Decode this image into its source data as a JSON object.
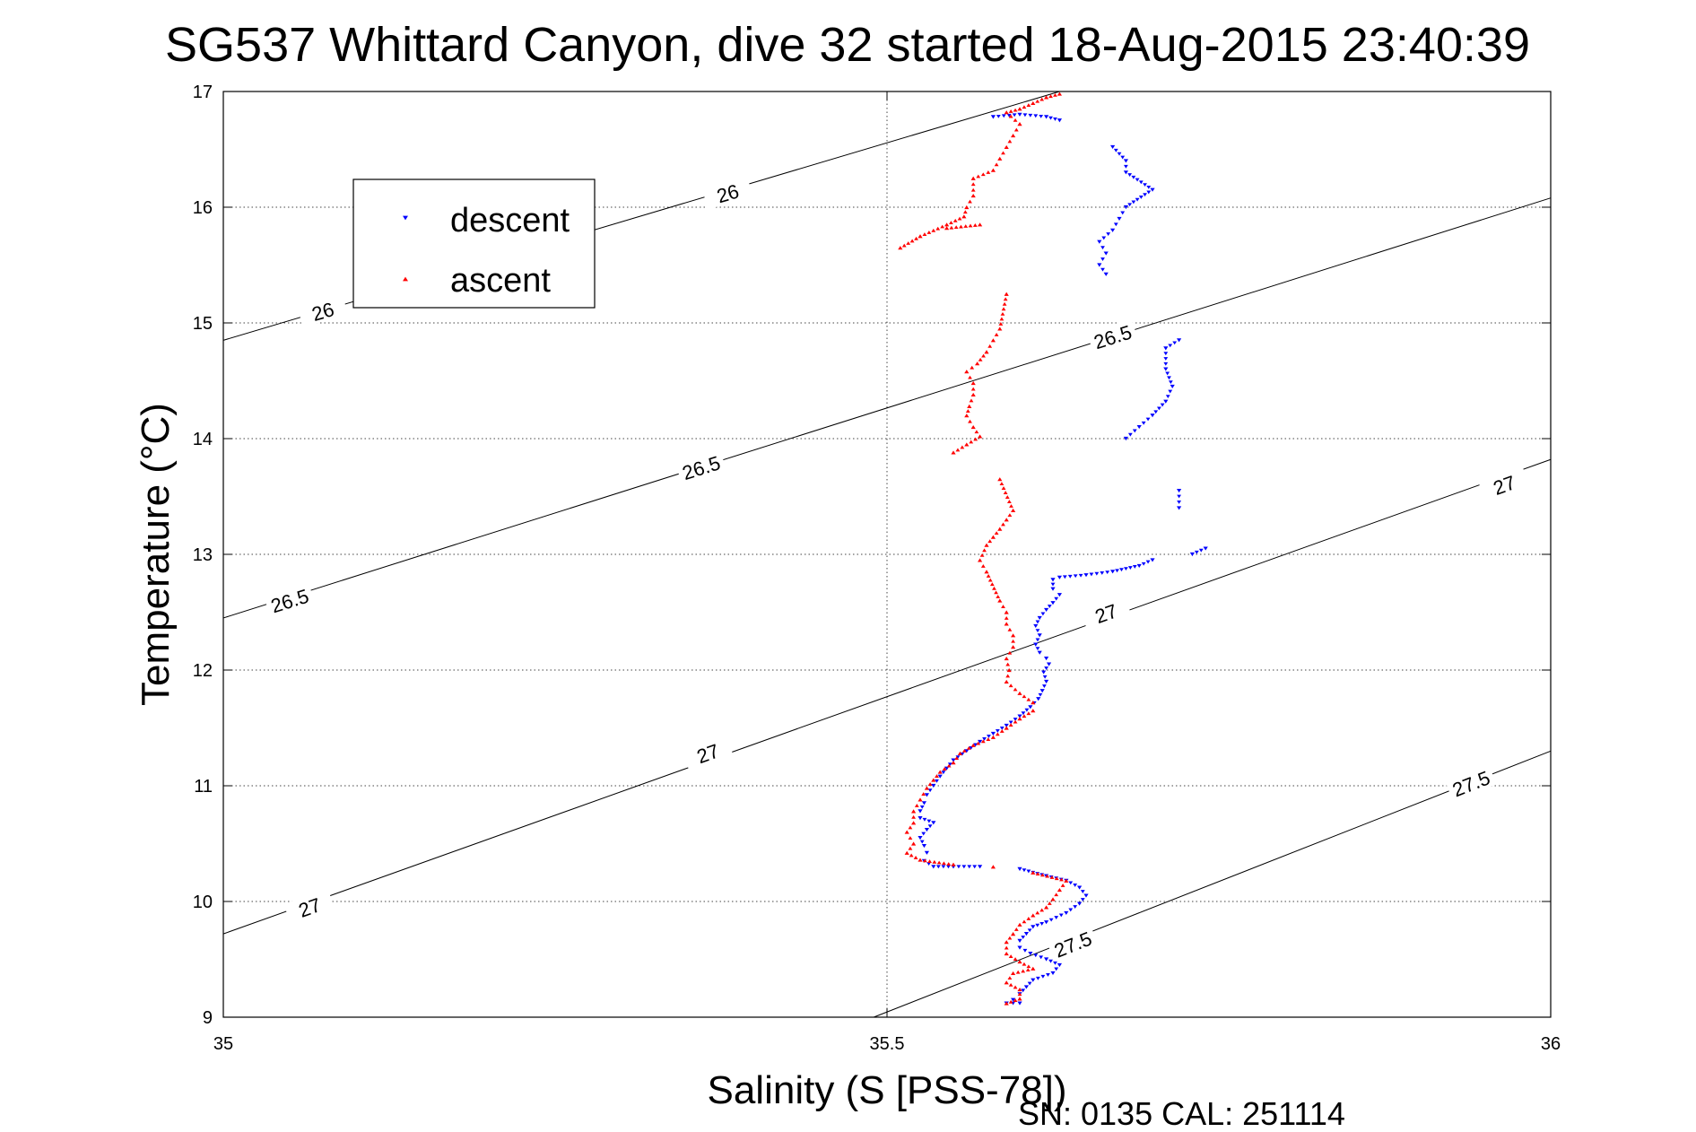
{
  "chart_data": {
    "type": "scatter",
    "title": "SG537 Whittard Canyon, dive 32 started 18-Aug-2015 23:40:39",
    "xlabel": "Salinity (S [PSS-78])",
    "ylabel": "Temperature (°C)",
    "xlim": [
      35,
      36
    ],
    "ylim": [
      9,
      17
    ],
    "xticks": [
      35,
      35.5,
      36
    ],
    "xtick_labels": [
      "35",
      "35.5",
      "36"
    ],
    "yticks": [
      9,
      10,
      11,
      12,
      13,
      14,
      15,
      16,
      17
    ],
    "ytick_labels": [
      "9",
      "10",
      "11",
      "12",
      "13",
      "14",
      "15",
      "16",
      "17"
    ],
    "grid": true,
    "legend_position": "top-left",
    "footer": "SN: 0135  CAL: 251114",
    "density_contours": [
      {
        "label": "26",
        "points": [
          [
            35,
            14.85
          ],
          [
            35.63,
            17
          ]
        ]
      },
      {
        "label": "26.5",
        "points": [
          [
            35,
            12.45
          ],
          [
            36,
            16.08
          ]
        ]
      },
      {
        "label": "27",
        "points": [
          [
            35,
            9.72
          ],
          [
            36,
            13.82
          ]
        ]
      },
      {
        "label": "27.5",
        "points": [
          [
            35.49,
            9
          ],
          [
            36,
            11.3
          ]
        ]
      }
    ],
    "contour_labels": [
      {
        "text": "26",
        "x": 35.075,
        "y": 15.1
      },
      {
        "text": "26",
        "x": 35.38,
        "y": 16.12
      },
      {
        "text": "26.5",
        "x": 35.05,
        "y": 12.6
      },
      {
        "text": "26.5",
        "x": 35.36,
        "y": 13.75
      },
      {
        "text": "26.5",
        "x": 35.67,
        "y": 14.88
      },
      {
        "text": "27",
        "x": 35.065,
        "y": 9.95
      },
      {
        "text": "27",
        "x": 35.365,
        "y": 11.28
      },
      {
        "text": "27",
        "x": 35.665,
        "y": 12.49
      },
      {
        "text": "27",
        "x": 35.965,
        "y": 13.6
      },
      {
        "text": "27.5",
        "x": 35.64,
        "y": 9.63
      },
      {
        "text": "27.5",
        "x": 35.94,
        "y": 11.02
      }
    ],
    "series": [
      {
        "name": "descent",
        "color": "#0000ff",
        "marker": "triangle-down",
        "points": [
          [
            35.58,
            16.78
          ],
          [
            35.6,
            16.8
          ],
          [
            35.62,
            16.78
          ],
          [
            35.63,
            16.75
          ],
          [
            35.67,
            16.52
          ],
          [
            35.68,
            16.4
          ],
          [
            35.68,
            16.3
          ],
          [
            35.7,
            16.15
          ],
          [
            35.68,
            16.0
          ],
          [
            35.675,
            15.9
          ],
          [
            35.67,
            15.8
          ],
          [
            35.66,
            15.7
          ],
          [
            35.665,
            15.6
          ],
          [
            35.66,
            15.5
          ],
          [
            35.665,
            15.42
          ],
          [
            35.72,
            14.85
          ],
          [
            35.71,
            14.78
          ],
          [
            35.71,
            14.6
          ],
          [
            35.715,
            14.45
          ],
          [
            35.71,
            14.32
          ],
          [
            35.7,
            14.2
          ],
          [
            35.69,
            14.1
          ],
          [
            35.68,
            14.0
          ],
          [
            35.72,
            13.55
          ],
          [
            35.72,
            13.4
          ],
          [
            35.74,
            13.05
          ],
          [
            35.73,
            13.0
          ],
          [
            35.7,
            12.95
          ],
          [
            35.69,
            12.9
          ],
          [
            35.67,
            12.85
          ],
          [
            35.65,
            12.82
          ],
          [
            35.63,
            12.8
          ],
          [
            35.625,
            12.78
          ],
          [
            35.625,
            12.7
          ],
          [
            35.63,
            12.65
          ],
          [
            35.625,
            12.58
          ],
          [
            35.62,
            12.52
          ],
          [
            35.615,
            12.45
          ],
          [
            35.612,
            12.38
          ],
          [
            35.615,
            12.3
          ],
          [
            35.612,
            12.22
          ],
          [
            35.615,
            12.15
          ],
          [
            35.62,
            12.1
          ],
          [
            35.622,
            12.05
          ],
          [
            35.618,
            11.98
          ],
          [
            35.62,
            11.9
          ],
          [
            35.617,
            11.82
          ],
          [
            35.614,
            11.75
          ],
          [
            35.608,
            11.68
          ],
          [
            35.6,
            11.6
          ],
          [
            35.59,
            11.52
          ],
          [
            35.58,
            11.45
          ],
          [
            35.57,
            11.38
          ],
          [
            35.56,
            11.3
          ],
          [
            35.55,
            11.22
          ],
          [
            35.545,
            11.15
          ],
          [
            35.54,
            11.08
          ],
          [
            35.535,
            11.0
          ],
          [
            35.53,
            10.92
          ],
          [
            35.528,
            10.85
          ],
          [
            35.525,
            10.78
          ],
          [
            35.525,
            10.72
          ],
          [
            35.535,
            10.68
          ],
          [
            35.53,
            10.62
          ],
          [
            35.525,
            10.55
          ],
          [
            35.528,
            10.48
          ],
          [
            35.53,
            10.42
          ],
          [
            35.528,
            10.35
          ],
          [
            35.535,
            10.3
          ],
          [
            35.55,
            10.3
          ],
          [
            35.57,
            10.3
          ],
          [
            35.6,
            10.28
          ],
          [
            35.62,
            10.22
          ],
          [
            35.635,
            10.18
          ],
          [
            35.645,
            10.12
          ],
          [
            35.65,
            10.05
          ],
          [
            35.645,
            9.98
          ],
          [
            35.635,
            9.9
          ],
          [
            35.62,
            9.82
          ],
          [
            35.61,
            9.78
          ],
          [
            35.605,
            9.72
          ],
          [
            35.6,
            9.66
          ],
          [
            35.6,
            9.6
          ],
          [
            35.608,
            9.55
          ],
          [
            35.62,
            9.5
          ],
          [
            35.63,
            9.45
          ],
          [
            35.625,
            9.38
          ],
          [
            35.61,
            9.32
          ],
          [
            35.605,
            9.26
          ],
          [
            35.6,
            9.2
          ],
          [
            35.595,
            9.15
          ],
          [
            35.59,
            9.12
          ],
          [
            35.6,
            9.12
          ]
        ]
      },
      {
        "name": "ascent",
        "color": "#ff0000",
        "marker": "triangle-up",
        "points": [
          [
            35.63,
            16.98
          ],
          [
            35.62,
            16.95
          ],
          [
            35.61,
            16.9
          ],
          [
            35.6,
            16.85
          ],
          [
            35.59,
            16.82
          ],
          [
            35.6,
            16.72
          ],
          [
            35.595,
            16.62
          ],
          [
            35.59,
            16.52
          ],
          [
            35.585,
            16.42
          ],
          [
            35.58,
            16.32
          ],
          [
            35.565,
            16.25
          ],
          [
            35.565,
            16.1
          ],
          [
            35.56,
            16.0
          ],
          [
            35.558,
            15.92
          ],
          [
            35.545,
            15.85
          ],
          [
            35.525,
            15.75
          ],
          [
            35.51,
            15.65
          ],
          [
            35.545,
            15.82
          ],
          [
            35.57,
            15.85
          ],
          [
            35.59,
            15.25
          ],
          [
            35.585,
            14.95
          ],
          [
            35.58,
            14.85
          ],
          [
            35.575,
            14.75
          ],
          [
            35.568,
            14.65
          ],
          [
            35.56,
            14.58
          ],
          [
            35.565,
            14.48
          ],
          [
            35.565,
            14.38
          ],
          [
            35.562,
            14.28
          ],
          [
            35.56,
            14.2
          ],
          [
            35.565,
            14.1
          ],
          [
            35.57,
            14.02
          ],
          [
            35.56,
            13.95
          ],
          [
            35.55,
            13.88
          ],
          [
            35.585,
            13.65
          ],
          [
            35.595,
            13.38
          ],
          [
            35.59,
            13.3
          ],
          [
            35.585,
            13.22
          ],
          [
            35.58,
            13.15
          ],
          [
            35.575,
            13.08
          ],
          [
            35.57,
            12.95
          ],
          [
            35.575,
            12.85
          ],
          [
            35.585,
            12.6
          ],
          [
            35.59,
            12.5
          ],
          [
            35.59,
            12.4
          ],
          [
            35.595,
            12.3
          ],
          [
            35.595,
            12.2
          ],
          [
            35.59,
            12.1
          ],
          [
            35.592,
            12.0
          ],
          [
            35.59,
            11.9
          ],
          [
            35.6,
            11.8
          ],
          [
            35.61,
            11.72
          ],
          [
            35.61,
            11.65
          ],
          [
            35.6,
            11.58
          ],
          [
            35.59,
            11.5
          ],
          [
            35.58,
            11.42
          ],
          [
            35.565,
            11.35
          ],
          [
            35.555,
            11.28
          ],
          [
            35.55,
            11.2
          ],
          [
            35.54,
            11.12
          ],
          [
            35.535,
            11.05
          ],
          [
            35.53,
            10.98
          ],
          [
            35.525,
            10.88
          ],
          [
            35.52,
            10.78
          ],
          [
            35.52,
            10.68
          ],
          [
            35.515,
            10.6
          ],
          [
            35.52,
            10.5
          ],
          [
            35.515,
            10.42
          ],
          [
            35.525,
            10.36
          ],
          [
            35.55,
            10.32
          ],
          [
            35.58,
            10.3
          ],
          [
            35.61,
            10.25
          ],
          [
            35.635,
            10.18
          ],
          [
            35.63,
            10.1
          ],
          [
            35.625,
            10.02
          ],
          [
            35.62,
            9.95
          ],
          [
            35.61,
            9.88
          ],
          [
            35.6,
            9.8
          ],
          [
            35.595,
            9.72
          ],
          [
            35.59,
            9.65
          ],
          [
            35.59,
            9.55
          ],
          [
            35.6,
            9.48
          ],
          [
            35.61,
            9.42
          ],
          [
            35.595,
            9.38
          ],
          [
            35.59,
            9.3
          ],
          [
            35.6,
            9.24
          ],
          [
            35.6,
            9.16
          ],
          [
            35.59,
            9.12
          ]
        ]
      }
    ]
  }
}
